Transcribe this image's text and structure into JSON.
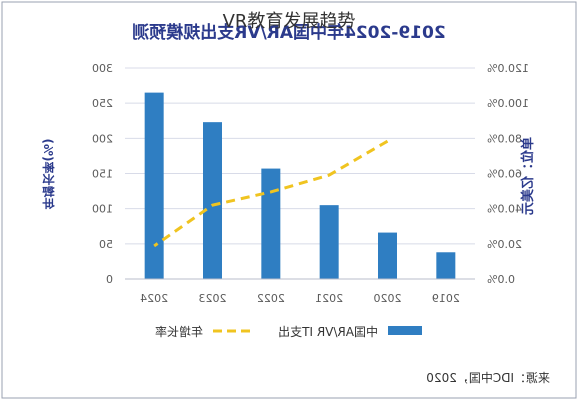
{
  "page": {
    "title": "VR教育发展趋势"
  },
  "colors": {
    "bar": "#2f7ec2",
    "growth_line": "#f0c420",
    "axis_text": "#5a5a5a",
    "title_text": "#2b3a8c",
    "grid": "#d8dbe8",
    "frame": "#9aa0b0"
  },
  "chart_data": {
    "type": "bar",
    "mirrored": true,
    "title": "2019-2024年中国AR/VR支出规模预测",
    "categories": [
      "2019",
      "2020",
      "2021",
      "2022",
      "2023",
      "2024"
    ],
    "series": [
      {
        "name": "中国AR/VR IT支出",
        "kind": "bar",
        "axis": "right",
        "values": [
          38,
          66,
          105,
          157,
          223,
          265
        ]
      },
      {
        "name": "年增长率",
        "kind": "line",
        "style": "dashed",
        "axis": "left",
        "values": [
          null,
          78.4,
          59.1,
          49.5,
          42.0,
          18.8
        ]
      }
    ],
    "left_axis": {
      "label": "年增长率(%)",
      "ylim": [
        0,
        120
      ],
      "ticks": [
        0,
        20,
        40,
        60,
        80,
        100,
        120
      ],
      "tick_labels": [
        "0.0%",
        "20.0%",
        "40.0%",
        "60.0%",
        "80.0%",
        "100.0%",
        "120.0%"
      ]
    },
    "right_axis": {
      "label": "单位：亿美元",
      "ylim": [
        0,
        300
      ],
      "ticks": [
        0,
        50,
        100,
        150,
        200,
        250,
        300
      ],
      "tick_labels": [
        "0",
        "50",
        "100",
        "150",
        "200",
        "250",
        "300"
      ]
    },
    "grid": true,
    "legend_position": "bottom",
    "source": "来源：IDC中国，2020"
  }
}
